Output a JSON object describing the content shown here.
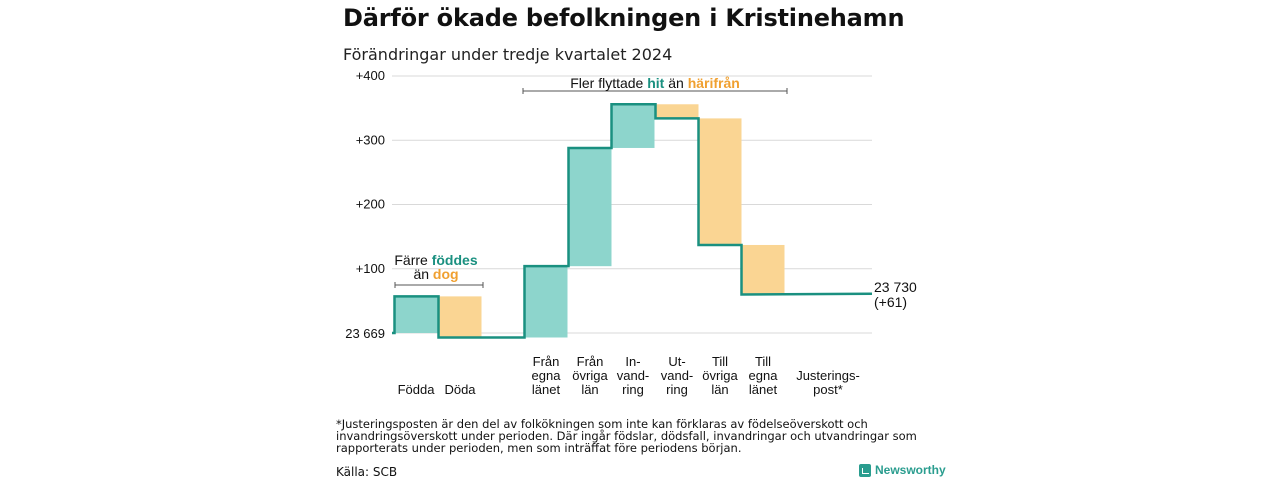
{
  "header": {
    "title": "Därför ökade befolkningen i Kristinehamn",
    "subtitle": "Förändringar under tredje kvartalet 2024"
  },
  "chart_data": {
    "type": "waterfall",
    "start_value": 23669,
    "start_label": "23 669",
    "end_value": 23730,
    "end_label": "23 730",
    "end_change_label": "(+61)",
    "ylim": [
      -10,
      400
    ],
    "yticks": [
      {
        "value": 100,
        "label": "+100"
      },
      {
        "value": 200,
        "label": "+200"
      },
      {
        "value": 300,
        "label": "+300"
      },
      {
        "value": 400,
        "label": "+400"
      }
    ],
    "steps": [
      {
        "label_lines": [
          "Födda"
        ],
        "value": 57,
        "sign": "positive"
      },
      {
        "label_lines": [
          "Döda"
        ],
        "value": -64,
        "sign": "negative"
      },
      {
        "label_lines": [
          "Från",
          "egna",
          "länet"
        ],
        "value": 111,
        "sign": "positive"
      },
      {
        "label_lines": [
          "Från",
          "övriga",
          "län"
        ],
        "value": 184,
        "sign": "positive"
      },
      {
        "label_lines": [
          "In-",
          "vand-",
          "ring"
        ],
        "value": 68,
        "sign": "positive"
      },
      {
        "label_lines": [
          "Ut-",
          "vand-",
          "ring"
        ],
        "value": -22,
        "sign": "negative"
      },
      {
        "label_lines": [
          "Till",
          "övriga",
          "län"
        ],
        "value": -197,
        "sign": "negative"
      },
      {
        "label_lines": [
          "Till",
          "egna",
          "länet"
        ],
        "value": -77,
        "sign": "negative"
      },
      {
        "label_lines": [
          "Justerings-",
          "post*"
        ],
        "value": 1,
        "sign": "adjustment"
      }
    ],
    "annotations": {
      "births": {
        "prefix": "Färre ",
        "highlight1": "föddes",
        "middle": "än ",
        "highlight2": "dog"
      },
      "migration": {
        "prefix": "Fler flyttade ",
        "highlight1": "hit",
        "middle": " än ",
        "highlight2": "härifrån"
      }
    },
    "colors": {
      "positive_fill": "#8dd5cc",
      "negative_fill": "#fad593",
      "line": "#1a9080",
      "highlight_positive": "#1a9080",
      "highlight_negative": "#f0a030",
      "grid": "#d9d9d9"
    }
  },
  "footer": {
    "footnote": "*Justeringsposten är den del av folkökningen som inte kan förklaras av födelseöverskott och invandringsöverskott under perioden. Där ingår födslar, dödsfall, invandringar och utvandringar som rapporterats under perioden, men som inträffat före periodens början.",
    "source": "Källa: SCB",
    "brand": "Newsworthy"
  }
}
